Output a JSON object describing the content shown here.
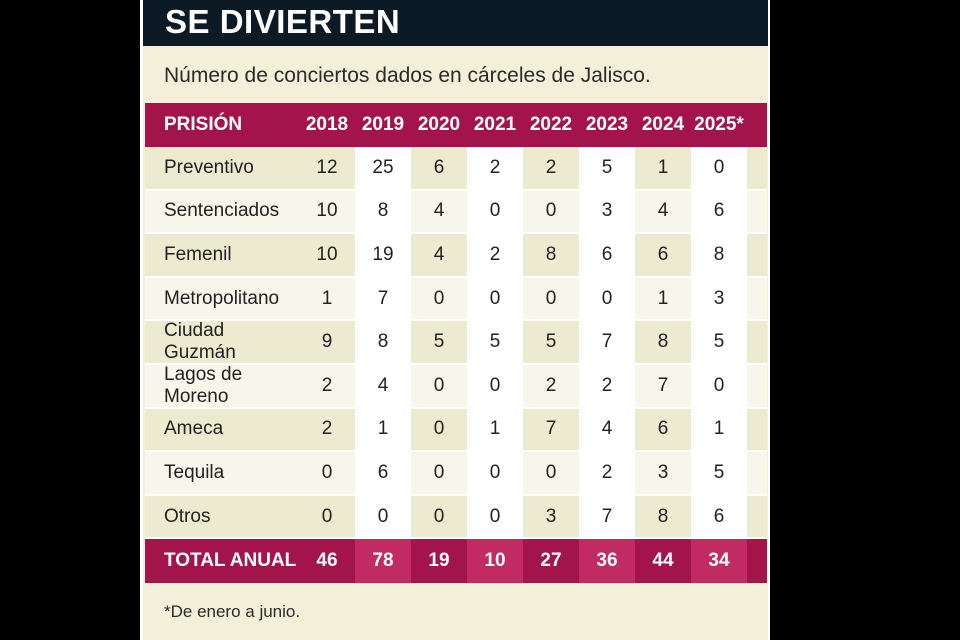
{
  "title": "SE DIVIERTEN",
  "subtitle": "Número de conciertos dados en cárceles de Jalisco.",
  "footnote": "*De enero a junio.",
  "colors": {
    "header_bg": "#0c1a26",
    "accent": "#a3154a",
    "accent_alt": "#c12b62",
    "panel_bg": "#f2f0d9"
  },
  "chart_data": {
    "type": "table",
    "columns": [
      "PRISIÓN",
      "2018",
      "2019",
      "2020",
      "2021",
      "2022",
      "2023",
      "2024",
      "2025*"
    ],
    "rows": [
      {
        "label": "Preventivo",
        "values": [
          "12",
          "25",
          "6",
          "2",
          "2",
          "5",
          "1",
          "0"
        ]
      },
      {
        "label": "Sentenciados",
        "values": [
          "10",
          "8",
          "4",
          "0",
          "0",
          "3",
          "4",
          "6"
        ]
      },
      {
        "label": "Femenil",
        "values": [
          "10",
          "19",
          "4",
          "2",
          "8",
          "6",
          "6",
          "8"
        ]
      },
      {
        "label": "Metropolitano",
        "values": [
          "1",
          "7",
          "0",
          "0",
          "0",
          "0",
          "1",
          "3"
        ]
      },
      {
        "label": "Ciudad Guzmán",
        "values": [
          "9",
          "8",
          "5",
          "5",
          "5",
          "7",
          "8",
          "5"
        ]
      },
      {
        "label": "Lagos de Moreno",
        "values": [
          "2",
          "4",
          "0",
          "0",
          "2",
          "2",
          "7",
          "0"
        ]
      },
      {
        "label": "Ameca",
        "values": [
          "2",
          "1",
          "0",
          "1",
          "7",
          "4",
          "6",
          "1"
        ]
      },
      {
        "label": "Tequila",
        "values": [
          "0",
          "6",
          "0",
          "0",
          "0",
          "2",
          "3",
          "5"
        ]
      },
      {
        "label": "Otros",
        "values": [
          "0",
          "0",
          "0",
          "0",
          "3",
          "7",
          "8",
          "6"
        ]
      }
    ],
    "total": {
      "label": "TOTAL ANUAL",
      "values": [
        "46",
        "78",
        "19",
        "10",
        "27",
        "36",
        "44",
        "34"
      ]
    }
  }
}
